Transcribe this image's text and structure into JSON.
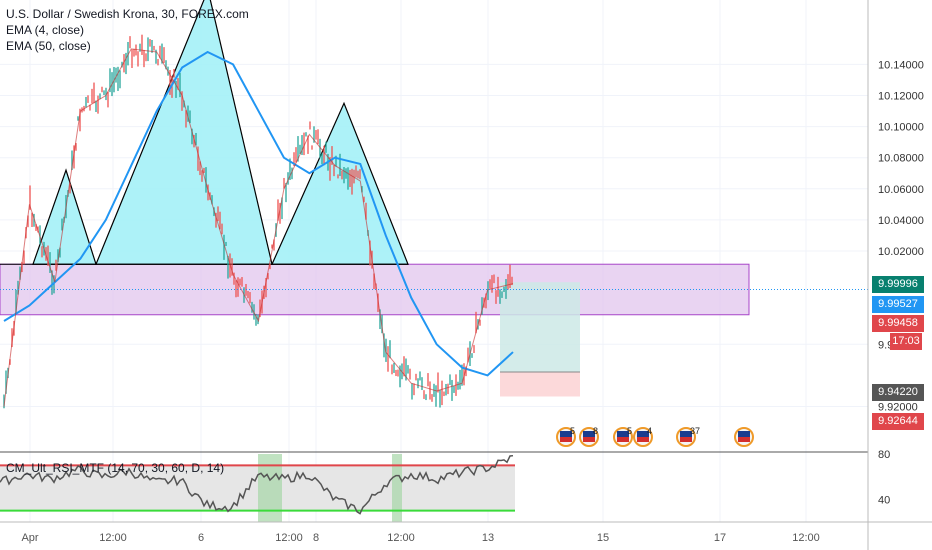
{
  "legend": {
    "symbol": "U.S. Dollar / Swedish Krona, 30, FOREX.com",
    "ema_fast": "EMA (4, close)",
    "ema_slow": "EMA (50, close)"
  },
  "rsi_label": "CM_Ult_RSI_MTF (14, 70, 30, 60, D, 14)",
  "colors": {
    "ema": "#2196f3",
    "pattern_fill": "#9ff0f7",
    "zone_fill": "#e1c5ee",
    "zone_border": "#a845c9",
    "long_target": "#cde9e6",
    "long_stop": "#fbd2d4",
    "tag_green": "#08806f",
    "tag_blue": "#2196f3",
    "tag_red": "#e0464b",
    "tag_gray": "#555555",
    "rsi_upper": "#e0464b",
    "rsi_lower": "#3adb3a"
  },
  "price_tags": [
    {
      "label": "9.99996",
      "color": "green"
    },
    {
      "label": "9.99527",
      "color": "blue"
    },
    {
      "label": "9.99458",
      "color": "red"
    },
    {
      "label": "17:03",
      "color": "red"
    },
    {
      "label": "9.94220",
      "color": "gray"
    },
    {
      "label": "9.92644",
      "color": "red"
    }
  ],
  "event_badges": [
    "5",
    "8",
    "5",
    "4",
    "37",
    ""
  ],
  "chart_data": [
    {
      "type": "line",
      "title": "U.S. Dollar / Swedish Krona, 30, FOREX.com",
      "x_ticks": [
        "Apr",
        "12:00",
        "6",
        "12:00",
        "8",
        "12:00",
        "13",
        "15",
        "17",
        "12:00"
      ],
      "y_ticks": [
        "10.14000",
        "10.12000",
        "10.10000",
        "10.08000",
        "10.06000",
        "10.04000",
        "10.02000",
        "9.96000",
        "9.92000"
      ],
      "ylim": [
        9.905,
        10.148
      ],
      "head_and_shoulders": {
        "neckline": 10.0115,
        "points": [
          {
            "label": "left shoulder",
            "y": 10.072
          },
          {
            "label": "head",
            "y": 10.16
          },
          {
            "label": "right shoulder",
            "y": 10.115
          }
        ]
      },
      "supply_zone": {
        "top": 10.0115,
        "bottom": 9.979
      },
      "long_position": {
        "entry": 9.9422,
        "target": 9.99996,
        "stop": 9.92644
      },
      "series": [
        {
          "name": "EMA (50, close)",
          "values": [
            9.975,
            9.985,
            10.0,
            10.015,
            10.04,
            10.075,
            10.11,
            10.138,
            10.148,
            10.14,
            10.11,
            10.08,
            10.07,
            10.08,
            10.076,
            10.03,
            9.99,
            9.96,
            9.945,
            9.94,
            9.955
          ]
        },
        {
          "name": "EMA (4, close)",
          "values": [
            9.92,
            10.05,
            10.0,
            10.11,
            10.12,
            10.15,
            10.148,
            10.12,
            10.06,
            10.005,
            9.975,
            10.06,
            10.095,
            10.075,
            10.065,
            9.955,
            9.935,
            9.93,
            9.935,
            9.995,
            9.999
          ]
        }
      ]
    },
    {
      "type": "line",
      "title": "CM_Ult_RSI_MTF (14, 70, 30, 60, D, 14)",
      "y_ticks": [
        "80",
        "40"
      ],
      "ylim": [
        20,
        80
      ],
      "levels": {
        "upper": 70,
        "lower": 30
      },
      "series": [
        {
          "name": "RSI",
          "values": [
            55,
            62,
            58,
            66,
            60,
            65,
            55,
            57,
            35,
            33,
            60,
            58,
            62,
            40,
            30,
            55,
            62,
            58,
            64,
            68,
            78
          ]
        }
      ]
    }
  ]
}
